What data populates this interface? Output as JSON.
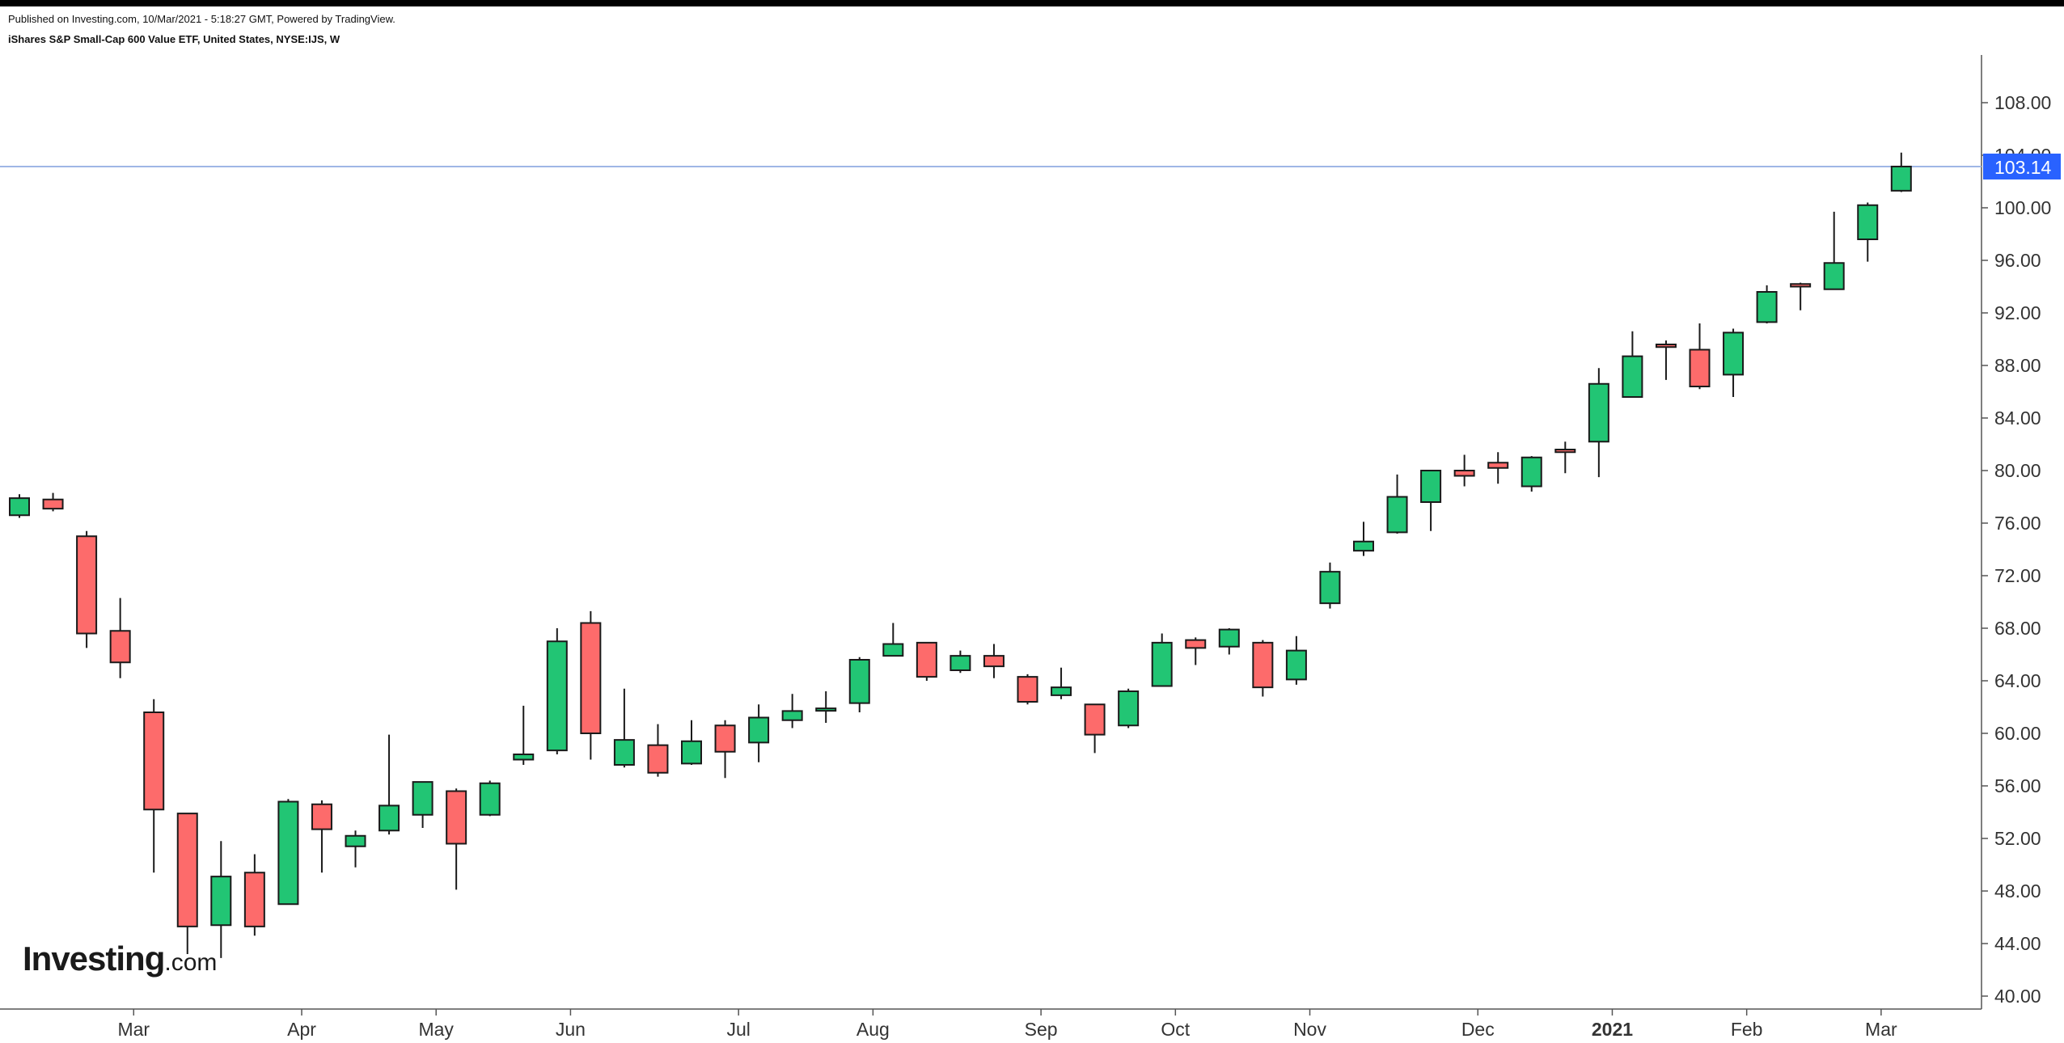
{
  "header": {
    "published_text": "Published on Investing.com, 10/Mar/2021 - 5:18:27 GMT, Powered by TradingView.",
    "instrument_text": "iShares S&P Small-Cap 600 Value ETF, United States, NYSE:IJS, W"
  },
  "logo": {
    "brand": "Investing",
    "suffix": ".com"
  },
  "price_label": {
    "value": "103.14",
    "color": "#2962ff"
  },
  "colors": {
    "up": "#22c574",
    "down": "#fd6b6b",
    "outline": "#1a1a1a",
    "axis": "#555555",
    "price_line": "#9fb6e6"
  },
  "chart_data": {
    "type": "candlestick",
    "interval": "weekly",
    "ylim": [
      40,
      110
    ],
    "y_ticks": [
      "40.00",
      "44.00",
      "48.00",
      "52.00",
      "56.00",
      "60.00",
      "64.00",
      "68.00",
      "72.00",
      "76.00",
      "80.00",
      "84.00",
      "88.00",
      "92.00",
      "96.00",
      "100.00",
      "104.00",
      "108.00"
    ],
    "x_ticks": [
      {
        "label": "Mar",
        "index": 3.4,
        "bold": false
      },
      {
        "label": "Apr",
        "index": 8.4,
        "bold": false
      },
      {
        "label": "May",
        "index": 12.4,
        "bold": false
      },
      {
        "label": "Jun",
        "index": 16.4,
        "bold": false
      },
      {
        "label": "Jul",
        "index": 21.4,
        "bold": false
      },
      {
        "label": "Aug",
        "index": 25.4,
        "bold": false
      },
      {
        "label": "Sep",
        "index": 30.4,
        "bold": false
      },
      {
        "label": "Oct",
        "index": 34.4,
        "bold": false
      },
      {
        "label": "Nov",
        "index": 38.4,
        "bold": false
      },
      {
        "label": "Dec",
        "index": 43.4,
        "bold": false
      },
      {
        "label": "2021",
        "index": 47.4,
        "bold": true
      },
      {
        "label": "Feb",
        "index": 51.4,
        "bold": false
      },
      {
        "label": "Mar",
        "index": 55.4,
        "bold": false
      }
    ],
    "last_price": 103.14,
    "candles": [
      {
        "o": 76.6,
        "h": 78.2,
        "l": 76.4,
        "c": 77.9
      },
      {
        "o": 77.8,
        "h": 78.3,
        "l": 76.9,
        "c": 77.1
      },
      {
        "o": 75.0,
        "h": 75.4,
        "l": 66.5,
        "c": 67.6
      },
      {
        "o": 67.8,
        "h": 70.3,
        "l": 64.2,
        "c": 65.4
      },
      {
        "o": 61.6,
        "h": 62.6,
        "l": 49.4,
        "c": 54.2
      },
      {
        "o": 53.9,
        "h": 53.9,
        "l": 43.2,
        "c": 45.3
      },
      {
        "o": 45.4,
        "h": 51.8,
        "l": 42.9,
        "c": 49.1
      },
      {
        "o": 49.4,
        "h": 50.8,
        "l": 44.6,
        "c": 45.3
      },
      {
        "o": 47.0,
        "h": 55.0,
        "l": 47.0,
        "c": 54.8
      },
      {
        "o": 54.6,
        "h": 54.9,
        "l": 49.4,
        "c": 52.7
      },
      {
        "o": 51.4,
        "h": 52.6,
        "l": 49.8,
        "c": 52.2
      },
      {
        "o": 52.6,
        "h": 59.9,
        "l": 52.3,
        "c": 54.5
      },
      {
        "o": 53.8,
        "h": 56.3,
        "l": 52.8,
        "c": 56.3
      },
      {
        "o": 55.6,
        "h": 55.8,
        "l": 48.1,
        "c": 51.6
      },
      {
        "o": 53.8,
        "h": 56.4,
        "l": 53.7,
        "c": 56.2
      },
      {
        "o": 58.0,
        "h": 62.1,
        "l": 57.6,
        "c": 58.4
      },
      {
        "o": 58.7,
        "h": 68.0,
        "l": 58.4,
        "c": 67.0
      },
      {
        "o": 68.4,
        "h": 69.3,
        "l": 58.0,
        "c": 60.0
      },
      {
        "o": 57.6,
        "h": 63.4,
        "l": 57.4,
        "c": 59.5
      },
      {
        "o": 59.1,
        "h": 60.7,
        "l": 56.7,
        "c": 57.0
      },
      {
        "o": 57.7,
        "h": 61.0,
        "l": 57.6,
        "c": 59.4
      },
      {
        "o": 60.6,
        "h": 61.0,
        "l": 56.6,
        "c": 58.6
      },
      {
        "o": 59.3,
        "h": 62.2,
        "l": 57.8,
        "c": 61.2
      },
      {
        "o": 61.0,
        "h": 63.0,
        "l": 60.4,
        "c": 61.7
      },
      {
        "o": 61.8,
        "h": 63.2,
        "l": 60.8,
        "c": 61.9
      },
      {
        "o": 62.3,
        "h": 65.8,
        "l": 61.6,
        "c": 65.6
      },
      {
        "o": 65.9,
        "h": 68.4,
        "l": 65.9,
        "c": 66.8
      },
      {
        "o": 66.9,
        "h": 66.9,
        "l": 64.0,
        "c": 64.3
      },
      {
        "o": 64.8,
        "h": 66.3,
        "l": 64.6,
        "c": 65.9
      },
      {
        "o": 65.9,
        "h": 66.8,
        "l": 64.2,
        "c": 65.1
      },
      {
        "o": 64.3,
        "h": 64.5,
        "l": 62.2,
        "c": 62.4
      },
      {
        "o": 62.9,
        "h": 65.0,
        "l": 62.6,
        "c": 63.5
      },
      {
        "o": 62.2,
        "h": 62.2,
        "l": 58.5,
        "c": 59.9
      },
      {
        "o": 60.6,
        "h": 63.4,
        "l": 60.4,
        "c": 63.2
      },
      {
        "o": 63.6,
        "h": 67.6,
        "l": 63.6,
        "c": 66.9
      },
      {
        "o": 67.1,
        "h": 67.3,
        "l": 65.2,
        "c": 66.5
      },
      {
        "o": 66.6,
        "h": 68.0,
        "l": 66.0,
        "c": 67.9
      },
      {
        "o": 66.9,
        "h": 67.1,
        "l": 62.8,
        "c": 63.5
      },
      {
        "o": 64.1,
        "h": 67.4,
        "l": 63.7,
        "c": 66.3
      },
      {
        "o": 69.9,
        "h": 73.0,
        "l": 69.5,
        "c": 72.3
      },
      {
        "o": 73.9,
        "h": 76.1,
        "l": 73.5,
        "c": 74.6
      },
      {
        "o": 75.3,
        "h": 79.7,
        "l": 75.2,
        "c": 78.0
      },
      {
        "o": 77.6,
        "h": 80.0,
        "l": 75.4,
        "c": 80.0
      },
      {
        "o": 80.0,
        "h": 81.2,
        "l": 78.8,
        "c": 79.6
      },
      {
        "o": 80.6,
        "h": 81.4,
        "l": 79.0,
        "c": 80.2
      },
      {
        "o": 78.8,
        "h": 81.1,
        "l": 78.4,
        "c": 81.0
      },
      {
        "o": 81.6,
        "h": 82.2,
        "l": 79.8,
        "c": 81.4
      },
      {
        "o": 82.2,
        "h": 87.8,
        "l": 79.5,
        "c": 86.6
      },
      {
        "o": 85.6,
        "h": 90.6,
        "l": 85.6,
        "c": 88.7
      },
      {
        "o": 89.6,
        "h": 89.9,
        "l": 86.9,
        "c": 89.4
      },
      {
        "o": 89.2,
        "h": 91.2,
        "l": 86.2,
        "c": 86.4
      },
      {
        "o": 87.3,
        "h": 90.8,
        "l": 85.6,
        "c": 90.5
      },
      {
        "o": 91.3,
        "h": 94.1,
        "l": 91.2,
        "c": 93.6
      },
      {
        "o": 94.2,
        "h": 94.3,
        "l": 92.2,
        "c": 94.0
      },
      {
        "o": 93.8,
        "h": 99.7,
        "l": 93.8,
        "c": 95.8
      },
      {
        "o": 97.6,
        "h": 100.4,
        "l": 95.9,
        "c": 100.2
      },
      {
        "o": 101.3,
        "h": 104.2,
        "l": 101.2,
        "c": 103.14
      }
    ]
  }
}
